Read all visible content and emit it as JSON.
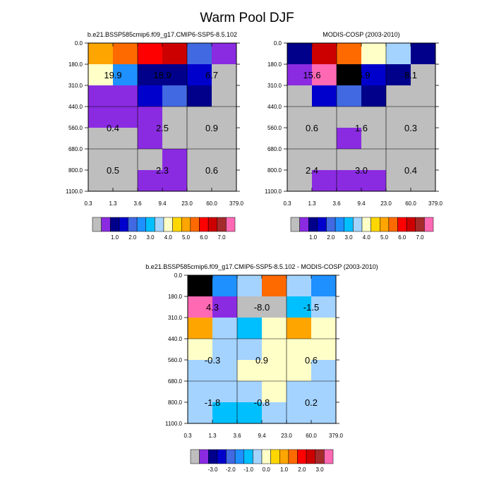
{
  "figure_title": "Warm Pool DJF",
  "chart_data": [
    {
      "type": "heatmap",
      "title": "b.e21.BSSP585cmip6.f09_g17.CMIP6-SSP5-8.5.102",
      "x_tick_labels": [
        "0.3",
        "1.3",
        "3.6",
        "9.4",
        "23.0",
        "60.0",
        "379.0"
      ],
      "y_tick_labels": [
        "0.0",
        "180.0",
        "310.0",
        "440.0",
        "560.0",
        "680.0",
        "800.0",
        "1100.0"
      ],
      "cell_color_bins": [
        [
          10,
          11,
          12,
          13,
          4,
          1
        ],
        [
          8,
          5,
          2,
          2,
          3,
          0
        ],
        [
          1,
          1,
          3,
          4,
          2,
          0
        ],
        [
          1,
          1,
          1,
          0,
          0,
          0
        ],
        [
          0,
          0,
          1,
          0,
          0,
          0
        ],
        [
          0,
          0,
          0,
          1,
          0,
          0
        ],
        [
          0,
          0,
          1,
          1,
          0,
          0
        ]
      ],
      "box_labels": [
        [
          "19.9",
          "18.9",
          "6.7"
        ],
        [
          "0.4",
          "2.5",
          "0.9"
        ],
        [
          "0.5",
          "2.3",
          "0.6"
        ]
      ],
      "colorbar_labels": [
        "1.0",
        "2.0",
        "3.0",
        "4.0",
        "5.0",
        "6.0",
        "7.0"
      ]
    },
    {
      "type": "heatmap",
      "title": "MODIS-COSP (2003-2010)",
      "x_tick_labels": [
        "0.3",
        "1.3",
        "3.6",
        "9.4",
        "23.0",
        "60.0",
        "379.0"
      ],
      "y_tick_labels": [
        "0.0",
        "180.0",
        "310.0",
        "440.0",
        "560.0",
        "680.0",
        "800.0",
        "1100.0"
      ],
      "cell_color_bins": [
        [
          2,
          13,
          11,
          8,
          7,
          2
        ],
        [
          1,
          15,
          16,
          3,
          2,
          0
        ],
        [
          0,
          3,
          4,
          2,
          0,
          0
        ],
        [
          0,
          0,
          0,
          0,
          0,
          0
        ],
        [
          0,
          0,
          1,
          0,
          0,
          0
        ],
        [
          0,
          0,
          0,
          0,
          0,
          0
        ],
        [
          0,
          1,
          1,
          1,
          0,
          0
        ]
      ],
      "box_labels": [
        [
          "15.6",
          "26.9",
          "8.1"
        ],
        [
          "0.6",
          "1.6",
          "0.3"
        ],
        [
          "2.4",
          "3.0",
          "0.4"
        ]
      ],
      "colorbar_labels": [
        "1.0",
        "2.0",
        "3.0",
        "4.0",
        "5.0",
        "6.0",
        "7.0"
      ]
    },
    {
      "type": "heatmap",
      "title": "b.e21.BSSP585cmip6.f09_g17.CMIP6-SSP5-8.5.102 - MODIS-COSP (2003-2010)",
      "x_tick_labels": [
        "0.3",
        "1.3",
        "3.6",
        "9.4",
        "23.0",
        "60.0",
        "379.0"
      ],
      "y_tick_labels": [
        "0.0",
        "180.0",
        "310.0",
        "440.0",
        "560.0",
        "680.0",
        "800.0",
        "1100.0"
      ],
      "cell_color_bins": [
        [
          16,
          5,
          7,
          11,
          7,
          5
        ],
        [
          15,
          1,
          0,
          0,
          6,
          7
        ],
        [
          10,
          7,
          6,
          8,
          10,
          8
        ],
        [
          8,
          7,
          7,
          8,
          8,
          8
        ],
        [
          7,
          7,
          8,
          8,
          8,
          7
        ],
        [
          7,
          7,
          7,
          8,
          7,
          7
        ],
        [
          7,
          6,
          6,
          7,
          7,
          7
        ]
      ],
      "box_labels": [
        [
          "4.3",
          "-8.0",
          "-1.5"
        ],
        [
          "-0.3",
          "0.9",
          "0.6"
        ],
        [
          "-1.8",
          "-0.8",
          "0.2"
        ]
      ],
      "colorbar_labels": [
        "-3.0",
        "-2.0",
        "-1.0",
        "0.0",
        "1.0",
        "2.0",
        "3.0"
      ]
    }
  ],
  "colors": {
    "cmap": [
      "#bebebe",
      "#8a2be2",
      "#00008b",
      "#0000cd",
      "#4169e1",
      "#1e90ff",
      "#00bfff",
      "#a4d3ff",
      "#ffffc8",
      "#ffd700",
      "#ffa500",
      "#ff6a00",
      "#ff0000",
      "#cd0000",
      "#a52a2a",
      "#ff69b4"
    ],
    "diff_cmap": [
      "#bebebe",
      "#8a2be2",
      "#00008b",
      "#0000cd",
      "#4169e1",
      "#1e90ff",
      "#00bfff",
      "#a4d3ff",
      "#ffffc8",
      "#ffd700",
      "#ffa500",
      "#ff6a00",
      "#ff0000",
      "#cd0000",
      "#a52a2a",
      "#ff69b4"
    ]
  }
}
